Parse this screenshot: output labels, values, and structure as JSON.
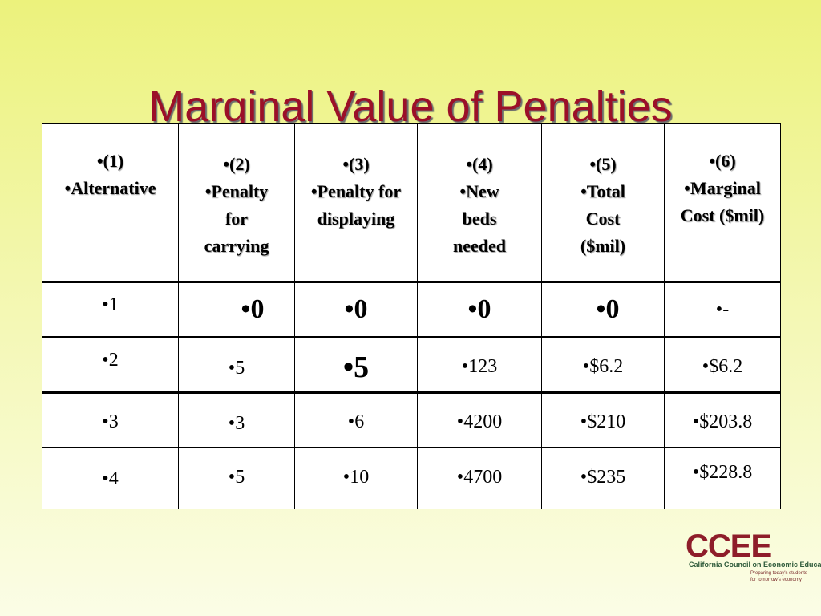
{
  "title": "Marginal Value of Penalties",
  "table": {
    "headers": [
      {
        "num": "(1)",
        "label": "Alternative"
      },
      {
        "num": "(2)",
        "label": "Penalty for carrying"
      },
      {
        "num": "(3)",
        "label": "Penalty for displaying"
      },
      {
        "num": "(4)",
        "label": "New beds needed"
      },
      {
        "num": "(5)",
        "label": "Total Cost ($mil)"
      },
      {
        "num": "(6)",
        "label": "Marginal Cost ($mil)"
      }
    ],
    "rows": [
      [
        "1",
        "0",
        "0",
        "0",
        "0",
        "-"
      ],
      [
        "2",
        "5",
        "5",
        "123",
        "$6.2",
        "$6.2"
      ],
      [
        "3",
        "3",
        "6",
        "4200",
        "$210",
        "$203.8"
      ],
      [
        "4",
        "5",
        "10",
        "4700",
        "$235",
        "$228.8"
      ]
    ]
  },
  "logo": {
    "mark": "CCEE",
    "name": "California Council on Economic Education",
    "tagline_1": "Preparing today's students",
    "tagline_2": "for tomorrow's economy"
  }
}
